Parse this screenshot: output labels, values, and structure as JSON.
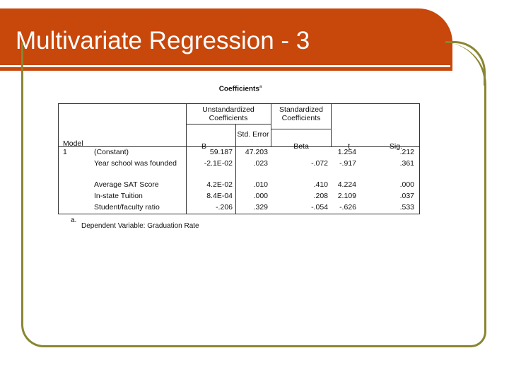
{
  "slide": {
    "title": "Multivariate Regression - 3"
  },
  "table": {
    "title": "Coefficients",
    "title_superscript": "a",
    "headers": {
      "model": "Model",
      "unstd_group": "Unstandardized Coefficients",
      "std_group": "Standardized Coefficients",
      "b": "B",
      "std_error": "Std. Error",
      "beta": "Beta",
      "t": "t",
      "sig": "Sig."
    },
    "model_number": "1",
    "rows": [
      {
        "name": "(Constant)",
        "b": "59.187",
        "se": "47.203",
        "beta": "",
        "t": "1.254",
        "sig": ".212"
      },
      {
        "name": "Year school was founded",
        "b": "-2.1E-02",
        "se": ".023",
        "beta": "-.072",
        "t": "-.917",
        "sig": ".361"
      },
      {
        "name": "Average SAT Score",
        "b": "4.2E-02",
        "se": ".010",
        "beta": ".410",
        "t": "4.224",
        "sig": ".000"
      },
      {
        "name": "In-state Tuition",
        "b": "8.4E-04",
        "se": ".000",
        "beta": ".208",
        "t": "2.109",
        "sig": ".037"
      },
      {
        "name": "Student/faculty ratio",
        "b": "-.206",
        "se": ".329",
        "beta": "-.054",
        "t": "-.626",
        "sig": ".533"
      }
    ],
    "footnote_marker": "a.",
    "footnote": "Dependent Variable: Graduation Rate"
  },
  "colors": {
    "banner": "#c8470a",
    "frame": "#8a8531"
  }
}
